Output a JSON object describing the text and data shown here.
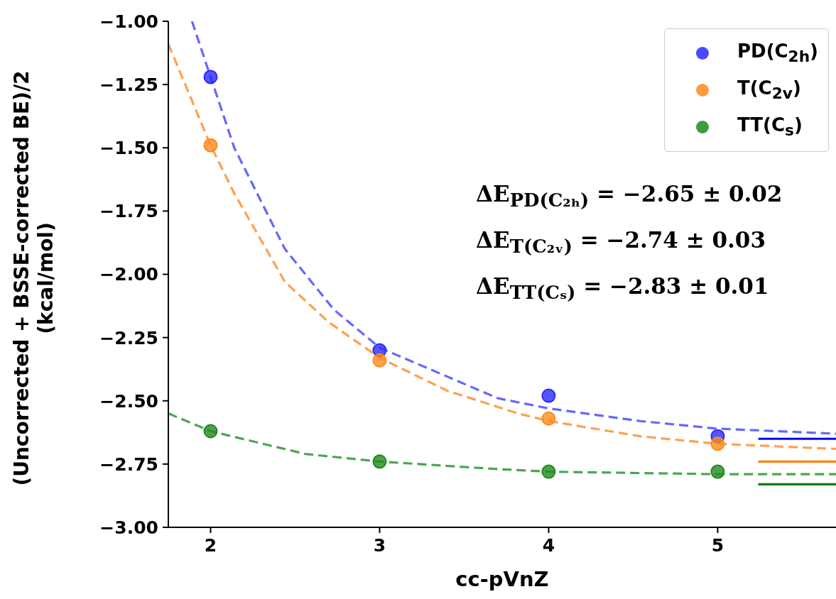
{
  "chart_data": {
    "type": "scatter",
    "xlabel": "cc-pVnZ",
    "ylabel": "(Uncorrected + BSSE-corrected BE)/2\n(kcal/mol)",
    "xlim": [
      1.75,
      5.7
    ],
    "xticks": [
      2,
      3,
      4,
      5
    ],
    "ylim": [
      -3,
      -1
    ],
    "yticks": [
      {
        "value": -1,
        "label": "−1.00"
      },
      {
        "value": -1.25,
        "label": "−1.25"
      },
      {
        "value": -1.5,
        "label": "−1.50"
      },
      {
        "value": -1.75,
        "label": "−1.75"
      },
      {
        "value": -2,
        "label": "−2.00"
      },
      {
        "value": -2.25,
        "label": "−2.25"
      },
      {
        "value": -2.5,
        "label": "−2.50"
      },
      {
        "value": -2.75,
        "label": "−2.75"
      },
      {
        "value": -3,
        "label": "−3.00"
      }
    ],
    "grid": false,
    "legend": "top right",
    "series": [
      {
        "name": "PD(C$_{2h}$)",
        "color": "#2a2aff",
        "marker": "circle",
        "x": [
          2,
          3,
          4,
          5
        ],
        "values": [
          -1.22,
          -2.3,
          -2.48,
          -2.64
        ]
      },
      {
        "name": "T(C$_{2v}$)",
        "color": "#ff8c1a",
        "marker": "circle",
        "x": [
          2,
          3,
          4,
          5
        ],
        "values": [
          -1.49,
          -2.34,
          -2.57,
          -2.67
        ]
      },
      {
        "name": "TT(C$_{s}$)",
        "color": "#1f8a1f",
        "marker": "circle",
        "x": [
          2,
          3,
          4,
          5
        ],
        "values": [
          -2.62,
          -2.74,
          -2.78,
          -2.78
        ]
      },
      {
        "type": "line",
        "color": "#6666ff",
        "line_style": "dashed",
        "marker": "none",
        "x": [
          1.89,
          2,
          2.14,
          2.44,
          2.73,
          3,
          3.7,
          4,
          4.54,
          5,
          5.7
        ],
        "values": [
          -1.0,
          -1.22,
          -1.5,
          -1.9,
          -2.14,
          -2.29,
          -2.49,
          -2.53,
          -2.58,
          -2.61,
          -2.63
        ]
      },
      {
        "type": "line",
        "color": "#ffa050",
        "line_style": "dashed",
        "marker": "none",
        "x": [
          1.75,
          2,
          2.14,
          2.44,
          2.7,
          3,
          3.4,
          3.82,
          4,
          4.54,
          5,
          5.7
        ],
        "values": [
          -1.09,
          -1.49,
          -1.68,
          -2.03,
          -2.19,
          -2.33,
          -2.46,
          -2.55,
          -2.58,
          -2.64,
          -2.67,
          -2.69
        ]
      },
      {
        "type": "line",
        "color": "#4ca64c",
        "line_style": "dashed",
        "marker": "none",
        "x": [
          1.75,
          2,
          2.56,
          3,
          3.7,
          4,
          5,
          5.7
        ],
        "values": [
          -2.55,
          -2.62,
          -2.71,
          -2.74,
          -2.77,
          -2.78,
          -2.79,
          -2.79
        ]
      },
      {
        "type": "line",
        "color": "#0000ff",
        "line_style": "solid",
        "marker": "none",
        "x": [
          5.24,
          5.7
        ],
        "values": [
          -2.65,
          -2.65
        ]
      },
      {
        "type": "line",
        "color": "#ff7f0e",
        "line_style": "solid",
        "marker": "none",
        "x": [
          5.24,
          5.7
        ],
        "values": [
          -2.74,
          -2.74
        ]
      },
      {
        "type": "line",
        "color": "#008000",
        "line_style": "solid",
        "marker": "none",
        "x": [
          5.24,
          5.7
        ],
        "values": [
          -2.83,
          -2.83
        ]
      }
    ],
    "annotations": [
      "ΔE$_{PD(C₂ₕ)}$ = −2.65 ± 0.02",
      "ΔE$_{T(C₂ᵥ)}$ = −2.74 ± 0.03",
      "ΔE$_{TT(Cₛ)}$ = −2.83 ± 0.01"
    ]
  }
}
